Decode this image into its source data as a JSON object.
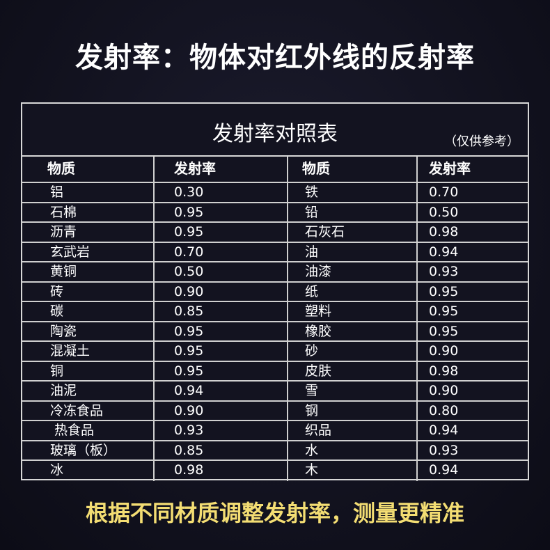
{
  "headline": "发射率：物体对红外线的反射率",
  "table": {
    "title": "发射率对照表",
    "note": "（仅供参考）",
    "headers": [
      "物质",
      "发射率",
      "物质",
      "发射率"
    ],
    "rows": [
      [
        "铝",
        "0.30",
        "铁",
        "0.70"
      ],
      [
        "石棉",
        "0.95",
        "铅",
        "0.50"
      ],
      [
        "沥青",
        "0.95",
        "石灰石",
        "0.98"
      ],
      [
        "玄武岩",
        "0.70",
        "油",
        "0.94"
      ],
      [
        "黄铜",
        "0.50",
        "油漆",
        "0.93"
      ],
      [
        "砖",
        "0.90",
        "纸",
        "0.95"
      ],
      [
        "碳",
        "0.85",
        "塑料",
        "0.95"
      ],
      [
        "陶瓷",
        "0.95",
        "橡胶",
        "0.95"
      ],
      [
        "混凝土",
        "0.95",
        "砂",
        "0.90"
      ],
      [
        "铜",
        "0.95",
        "皮肤",
        "0.98"
      ],
      [
        "油泥",
        "0.94",
        "雪",
        "0.90"
      ],
      [
        "冷冻食品",
        "0.90",
        "钢",
        "0.80"
      ],
      [
        " 热食品",
        "0.93",
        "织品",
        "0.94"
      ],
      [
        "玻璃（板）",
        "0.85",
        "水",
        "0.93"
      ],
      [
        "冰",
        "0.98",
        "木",
        "0.94"
      ]
    ]
  },
  "footer": "根据不同材质调整发射率，测量更精准",
  "colors": {
    "background": "#12121f",
    "footer_text": "#f3dd73",
    "grid_lines": "#d8d8d8"
  }
}
